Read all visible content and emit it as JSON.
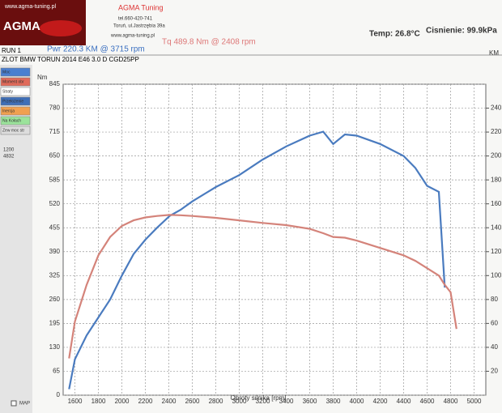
{
  "header": {
    "logo_url": "www.agma-tuning.pl",
    "logo_name": "AGMA",
    "company": "AGMA Tuning",
    "phone": "tel.660-420-741",
    "address": "Toruń, ul.Jastrzębia 39a",
    "website": "www.agma-tuning.pl",
    "temp": "Temp: 26.8°C",
    "pressure": "Cisnienie: 99.9kPa",
    "run": "RUN 1"
  },
  "sidebar": {
    "buttons": [
      {
        "label": "Moc",
        "color": "#4a7fd0"
      },
      {
        "label": "Moment obr",
        "color": "#e06a5a"
      },
      {
        "label": "Straty",
        "color": "#ffffff"
      },
      {
        "label": "Przełożenie",
        "color": "#3f6fb8"
      },
      {
        "label": "Inercja",
        "color": "#f0a050"
      },
      {
        "label": "Na Kołach",
        "color": "#9be39b"
      },
      {
        "label": "Zew moc str",
        "color": "#dddddd"
      }
    ],
    "range_from": 1200,
    "range_to": 4832,
    "map_label": "MAP"
  },
  "chart_data": {
    "type": "line",
    "title": "ZLOT BMW TORUN 2014 E46 3.0 D CGD25PP",
    "annotations": [
      "Pwr  220.3 KM @ 3715 rpm",
      "Tq 489.8 Nm @ 2408 rpm"
    ],
    "xlabel": "Obroty silnika [rpm]",
    "ylabel": "Nm",
    "y2label": "KM",
    "x": [
      1550,
      1600,
      1700,
      1800,
      1900,
      2000,
      2100,
      2200,
      2300,
      2408,
      2500,
      2600,
      2800,
      3000,
      3200,
      3400,
      3600,
      3715,
      3800,
      3900,
      4000,
      4200,
      4400,
      4500,
      4600,
      4700,
      4750,
      4800,
      4850
    ],
    "series": [
      {
        "name": "Moc",
        "color": "#4a7bbf",
        "axis": "y2",
        "values": [
          5,
          30,
          50,
          65,
          80,
          100,
          118,
          130,
          140,
          150,
          155,
          162,
          174,
          184,
          197,
          208,
          217,
          220.3,
          210,
          218,
          217,
          210,
          200,
          190,
          175,
          170,
          90,
          null,
          null
        ]
      },
      {
        "name": "Moment obr",
        "color": "#d4837a",
        "values": [
          100,
          200,
          300,
          380,
          430,
          460,
          475,
          483,
          487,
          489.8,
          489,
          487,
          482,
          475,
          468,
          462,
          452,
          440,
          430,
          428,
          420,
          400,
          380,
          365,
          345,
          325,
          300,
          280,
          180
        ]
      }
    ],
    "xlim": [
      1500,
      5100
    ],
    "xticks": [
      1600,
      1800,
      2000,
      2200,
      2400,
      2600,
      2800,
      3000,
      3200,
      3400,
      3600,
      3800,
      4000,
      4200,
      4400,
      4600,
      4800,
      5000
    ],
    "ylim": [
      0,
      845
    ],
    "yticks": [
      0,
      65,
      130,
      195,
      260,
      325,
      390,
      455,
      520,
      585,
      650,
      715,
      780,
      845
    ],
    "y2lim": [
      0,
      260
    ],
    "y2ticks": [
      20,
      40,
      60,
      80,
      100,
      120,
      140,
      160,
      180,
      200,
      220,
      240
    ],
    "grid": true
  }
}
